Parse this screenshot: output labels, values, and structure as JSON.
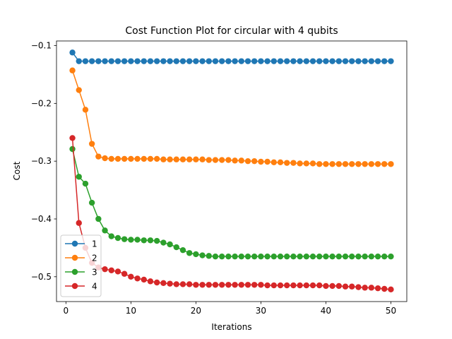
{
  "chart_data": {
    "type": "line",
    "title": "Cost Function Plot for circular with 4 qubits",
    "xlabel": "Iterations",
    "ylabel": "Cost",
    "xlim": [
      -1.45,
      52.45
    ],
    "ylim": [
      -0.543,
      -0.092
    ],
    "xticks": [
      0,
      10,
      20,
      30,
      40,
      50
    ],
    "yticks": [
      -0.5,
      -0.4,
      -0.3,
      -0.2,
      -0.1
    ],
    "ytick_labels": [
      "−0.5",
      "−0.4",
      "−0.3",
      "−0.2",
      "−0.1"
    ],
    "grid": false,
    "legend_position": "lower-left",
    "marker": "circle",
    "series": [
      {
        "name": "1",
        "color": "#1f77b4",
        "values": [
          -0.112,
          -0.127,
          -0.127,
          -0.127,
          -0.127,
          -0.127,
          -0.127,
          -0.127,
          -0.127,
          -0.127,
          -0.127,
          -0.127,
          -0.127,
          -0.127,
          -0.127,
          -0.127,
          -0.127,
          -0.127,
          -0.127,
          -0.127,
          -0.127,
          -0.127,
          -0.127,
          -0.127,
          -0.127,
          -0.127,
          -0.127,
          -0.127,
          -0.127,
          -0.127,
          -0.127,
          -0.127,
          -0.127,
          -0.127,
          -0.127,
          -0.127,
          -0.127,
          -0.127,
          -0.127,
          -0.127,
          -0.127,
          -0.127,
          -0.127,
          -0.127,
          -0.127,
          -0.127,
          -0.127,
          -0.127,
          -0.127,
          -0.127
        ]
      },
      {
        "name": "2",
        "color": "#ff7f0e",
        "values": [
          -0.143,
          -0.177,
          -0.211,
          -0.27,
          -0.292,
          -0.295,
          -0.296,
          -0.296,
          -0.296,
          -0.296,
          -0.296,
          -0.296,
          -0.296,
          -0.296,
          -0.297,
          -0.297,
          -0.297,
          -0.297,
          -0.297,
          -0.297,
          -0.297,
          -0.298,
          -0.298,
          -0.298,
          -0.298,
          -0.299,
          -0.299,
          -0.3,
          -0.3,
          -0.301,
          -0.301,
          -0.302,
          -0.302,
          -0.303,
          -0.303,
          -0.304,
          -0.304,
          -0.304,
          -0.305,
          -0.305,
          -0.305,
          -0.305,
          -0.305,
          -0.305,
          -0.305,
          -0.305,
          -0.305,
          -0.305,
          -0.305,
          -0.305
        ]
      },
      {
        "name": "3",
        "color": "#2ca02c",
        "values": [
          -0.279,
          -0.327,
          -0.339,
          -0.372,
          -0.4,
          -0.42,
          -0.43,
          -0.433,
          -0.435,
          -0.436,
          -0.436,
          -0.437,
          -0.437,
          -0.438,
          -0.441,
          -0.444,
          -0.449,
          -0.454,
          -0.459,
          -0.461,
          -0.463,
          -0.464,
          -0.465,
          -0.465,
          -0.465,
          -0.465,
          -0.465,
          -0.465,
          -0.465,
          -0.465,
          -0.465,
          -0.465,
          -0.465,
          -0.465,
          -0.465,
          -0.465,
          -0.465,
          -0.465,
          -0.465,
          -0.465,
          -0.465,
          -0.465,
          -0.465,
          -0.465,
          -0.465,
          -0.465,
          -0.465,
          -0.465,
          -0.465,
          -0.465
        ]
      },
      {
        "name": "4",
        "color": "#d62728",
        "values": [
          -0.26,
          -0.407,
          -0.45,
          -0.476,
          -0.484,
          -0.487,
          -0.489,
          -0.491,
          -0.495,
          -0.5,
          -0.503,
          -0.505,
          -0.508,
          -0.51,
          -0.511,
          -0.512,
          -0.513,
          -0.513,
          -0.513,
          -0.514,
          -0.514,
          -0.514,
          -0.514,
          -0.514,
          -0.514,
          -0.514,
          -0.514,
          -0.514,
          -0.514,
          -0.514,
          -0.515,
          -0.515,
          -0.515,
          -0.515,
          -0.515,
          -0.515,
          -0.515,
          -0.515,
          -0.515,
          -0.516,
          -0.516,
          -0.516,
          -0.517,
          -0.517,
          -0.518,
          -0.519,
          -0.519,
          -0.52,
          -0.521,
          -0.522
        ]
      }
    ]
  }
}
